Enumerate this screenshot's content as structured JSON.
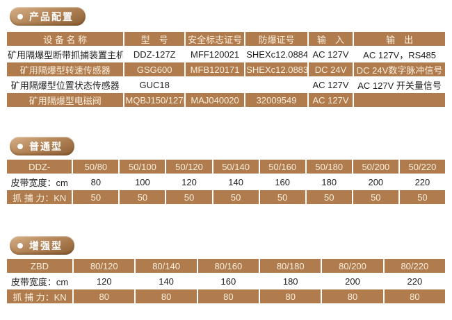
{
  "theme": {
    "accent": "#b17c4d",
    "accent_text": "#f9eedd",
    "text": "#1e1e1e",
    "badge_light": "#d7b189",
    "badge_mid": "#b5875a",
    "badge_dark": "#8c5e34"
  },
  "sections": [
    {
      "badge": "产品配置",
      "table": {
        "headers": [
          "设 备 名 称",
          "型　号",
          "安全标志证号",
          "防爆证号",
          "输　入",
          "输　出"
        ],
        "rows": [
          [
            "矿用隔爆型断带抓捕装置主机",
            "DDZ-127Z",
            "MFF120021",
            "SHEXc12.0884",
            "AC 127V",
            "AC 127V，RS485"
          ],
          [
            "矿用隔爆型转速传感器",
            "GSG600",
            "MFB120171",
            "SHEXc12.0883",
            "DC 24V",
            "DC 24V数字脉冲信号"
          ],
          [
            "矿用隔爆型位置状态传感器",
            "GUC18",
            "",
            "",
            "AC 127V",
            "AC 127V 开关量信号"
          ],
          [
            "矿用隔爆型电磁阀",
            "MQBJ150/127N",
            "MAJ040020",
            "32009549",
            "AC 127V",
            ""
          ]
        ]
      }
    },
    {
      "badge": "普通型",
      "table": {
        "headers": [
          "DDZ-",
          "50/80",
          "50/100",
          "50/120",
          "50/140",
          "50/160",
          "50/180",
          "50/200",
          "50/220"
        ],
        "rows": [
          [
            "皮带宽度：cm",
            "80",
            "100",
            "120",
            "140",
            "160",
            "180",
            "200",
            "220"
          ],
          [
            "抓 捕 力：KN",
            "50",
            "50",
            "50",
            "50",
            "50",
            "50",
            "50",
            "50"
          ]
        ]
      }
    },
    {
      "badge": "增强型",
      "table": {
        "headers": [
          "ZBD",
          "80/120",
          "80/140",
          "80/160",
          "80/180",
          "80/200",
          "80/220"
        ],
        "rows": [
          [
            "皮带宽度：cm",
            "120",
            "140",
            "160",
            "180",
            "200",
            "220"
          ],
          [
            "抓 捕 力：KN",
            "80",
            "80",
            "80",
            "80",
            "80",
            "80"
          ]
        ]
      }
    }
  ]
}
